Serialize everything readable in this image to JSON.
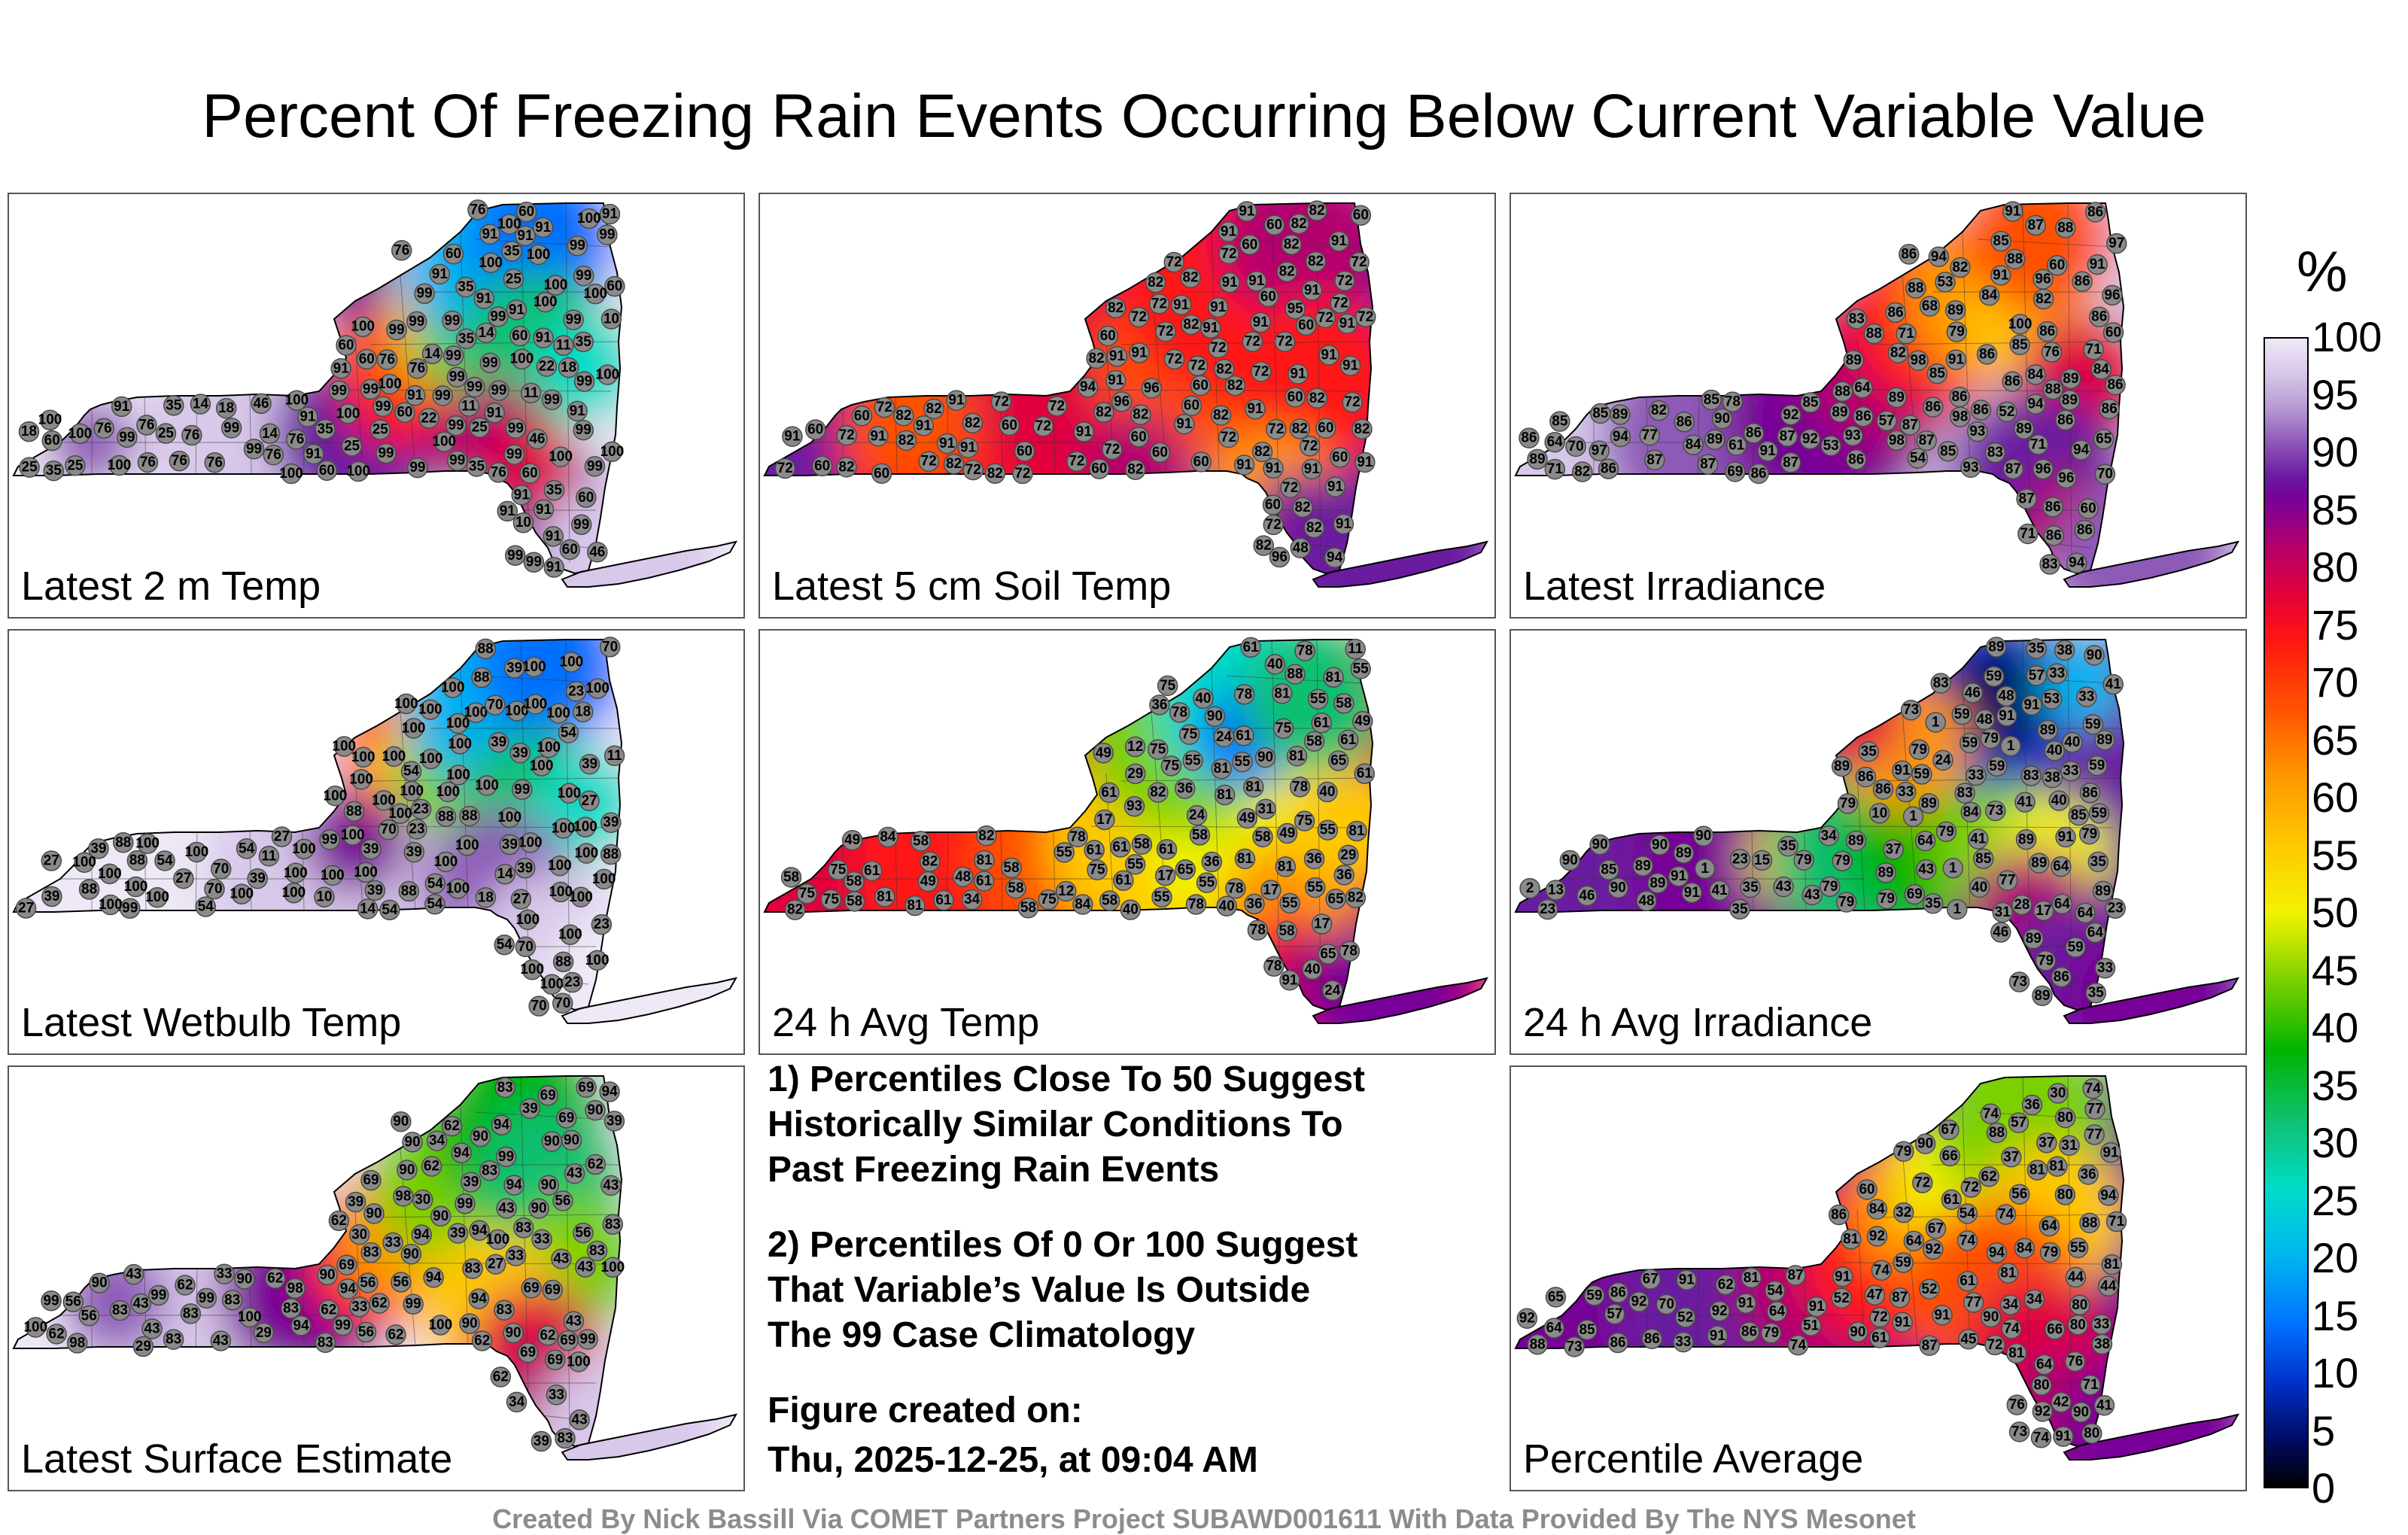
{
  "title": "Percent Of Freezing Rain Events Occurring Below Current Variable Value",
  "panels": [
    {
      "label": "Latest 2 m Temp",
      "theme": "temp2m"
    },
    {
      "label": "Latest 5 cm Soil Temp",
      "theme": "soil"
    },
    {
      "label": "Latest Irradiance",
      "theme": "irr"
    },
    {
      "label": "Latest Wetbulb Temp",
      "theme": "wetbulb"
    },
    {
      "label": "24 h Avg Temp",
      "theme": "avgtemp"
    },
    {
      "label": "24 h Avg Irradiance",
      "theme": "avgirr"
    },
    {
      "label": "Latest Surface Estimate",
      "theme": "surface"
    },
    {
      "label": "Percentile Average",
      "theme": "average"
    }
  ],
  "notes": {
    "note1": "1) Percentiles Close To 50 Suggest\nHistorically Similar Conditions To\nPast Freezing Rain Events",
    "note2": "2) Percentiles Of 0 Or 100 Suggest\nThat Variable’s Value Is Outside\nThe 99 Case Climatology",
    "created_label": "Figure created on:",
    "created_date": "Thu, 2025-12-25, at 09:04 AM"
  },
  "colorbar": {
    "unit": "%",
    "ticks": [
      "100",
      "95",
      "90",
      "85",
      "80",
      "75",
      "70",
      "65",
      "60",
      "55",
      "50",
      "45",
      "40",
      "35",
      "30",
      "25",
      "20",
      "15",
      "10",
      "5",
      "0"
    ]
  },
  "credit": "Created By Nick Bassill Via COMET Partners Project SUBAWD001611 With Data Provided By The NYS Mesonet",
  "station_values": {
    "temp2m": [
      "99",
      "99",
      "99",
      "100",
      "99",
      "99",
      "76",
      "91",
      "99",
      "100",
      "99",
      "99",
      "100",
      "91",
      "99",
      "100",
      "91",
      "99",
      "99",
      "100",
      "99",
      "91",
      "99",
      "99",
      "100",
      "99",
      "100",
      "99",
      "99",
      "99",
      "91",
      "99",
      "91",
      "99",
      "60",
      "60",
      "91",
      "99",
      "91",
      "76",
      "91",
      "60",
      "60",
      "100",
      "76",
      "99",
      "99",
      "91",
      "60",
      "76",
      "91",
      "99",
      "99",
      "91",
      "76",
      "35",
      "99",
      "76",
      "99",
      "91",
      "99",
      "100",
      "60",
      "35",
      "76",
      "99",
      "25",
      "91",
      "99",
      "35",
      "76",
      "91",
      "99",
      "91",
      "46",
      "35",
      "46",
      "25",
      "60",
      "35",
      "14",
      "11",
      "14",
      "35",
      "25",
      "25",
      "60",
      "91",
      "25",
      "10",
      "25",
      "11",
      "22",
      "14",
      "18",
      "11",
      "22",
      "18",
      "10",
      "14",
      "25",
      "76",
      "18",
      "60",
      "46",
      "76",
      "99",
      "91",
      "60",
      "35",
      "76",
      "99",
      "91",
      "35",
      "60",
      "76",
      "99",
      "91",
      "100",
      "100",
      "100",
      "100",
      "100",
      "100",
      "100",
      "100",
      "100",
      "100",
      "100",
      "100",
      "76",
      "60",
      "35"
    ],
    "soil": [
      "82",
      "91",
      "72",
      "82",
      "91",
      "72",
      "82",
      "91",
      "82",
      "60",
      "72",
      "94",
      "82",
      "91",
      "72",
      "82",
      "60",
      "72",
      "91",
      "82",
      "72",
      "91",
      "82",
      "60",
      "72",
      "82",
      "91",
      "72",
      "82",
      "91",
      "60",
      "72",
      "82",
      "91",
      "72",
      "60",
      "91",
      "72",
      "82",
      "91",
      "82",
      "72",
      "91",
      "60",
      "82",
      "72",
      "91",
      "82",
      "72",
      "60",
      "91",
      "82",
      "72",
      "91",
      "60",
      "72",
      "82",
      "91",
      "72",
      "60",
      "91",
      "82",
      "72",
      "91",
      "72",
      "82",
      "60",
      "91",
      "72",
      "60",
      "82",
      "96",
      "91",
      "72",
      "82",
      "60",
      "72",
      "91",
      "82",
      "91",
      "72",
      "60",
      "82",
      "72",
      "91",
      "60",
      "72",
      "82",
      "91",
      "72",
      "60",
      "82",
      "91",
      "96",
      "82",
      "72",
      "91",
      "60",
      "72",
      "48",
      "82",
      "60",
      "91",
      "72",
      "60",
      "96",
      "91",
      "82",
      "60",
      "72",
      "91",
      "91",
      "72",
      "60",
      "82",
      "91",
      "60",
      "72",
      "94",
      "95",
      "91",
      "72",
      "82",
      "60"
    ],
    "irr": [
      "94",
      "97",
      "98",
      "100",
      "96",
      "93",
      "97",
      "98",
      "89",
      "98",
      "96",
      "86",
      "87",
      "89",
      "92",
      "94",
      "96",
      "88",
      "86",
      "87",
      "86",
      "91",
      "89",
      "93",
      "94",
      "89",
      "86",
      "90",
      "94",
      "87",
      "88",
      "86",
      "91",
      "89",
      "89",
      "94",
      "87",
      "86",
      "85",
      "96",
      "91",
      "88",
      "89",
      "86",
      "86",
      "87",
      "83",
      "89",
      "86",
      "85",
      "82",
      "86",
      "84",
      "85",
      "86",
      "84",
      "82",
      "86",
      "88",
      "86",
      "91",
      "87",
      "84",
      "86",
      "86",
      "85",
      "71",
      "86",
      "53",
      "87",
      "60",
      "65",
      "70",
      "76",
      "78",
      "77",
      "71",
      "79",
      "82",
      "70",
      "83",
      "71",
      "68",
      "64",
      "57",
      "69",
      "53",
      "52",
      "60",
      "54",
      "84",
      "86",
      "82",
      "85",
      "86",
      "71",
      "91",
      "64",
      "61",
      "60",
      "86",
      "88",
      "85",
      "86",
      "82",
      "83",
      "86",
      "87",
      "86",
      "92",
      "87",
      "85",
      "86",
      "86",
      "85",
      "88",
      "71",
      "93",
      "89",
      "89"
    ],
    "wetbulb": [
      "100",
      "100",
      "100",
      "100",
      "100",
      "100",
      "100",
      "100",
      "100",
      "100",
      "100",
      "100",
      "100",
      "100",
      "100",
      "100",
      "100",
      "100",
      "100",
      "100",
      "88",
      "100",
      "100",
      "100",
      "100",
      "100",
      "100",
      "100",
      "100",
      "100",
      "100",
      "100",
      "100",
      "100",
      "100",
      "100",
      "70",
      "70",
      "54",
      "54",
      "100",
      "100",
      "100",
      "100",
      "88",
      "39",
      "39",
      "100",
      "100",
      "100",
      "88",
      "88",
      "54",
      "39",
      "54",
      "39",
      "27",
      "39",
      "39",
      "27",
      "23",
      "27",
      "39",
      "39",
      "14",
      "14",
      "11",
      "10",
      "23",
      "23",
      "27",
      "39",
      "70",
      "70",
      "100",
      "54",
      "88",
      "88",
      "88",
      "100",
      "100",
      "88",
      "88",
      "100",
      "100",
      "100",
      "100",
      "99",
      "99",
      "100",
      "100",
      "88",
      "70",
      "54",
      "39",
      "39",
      "23",
      "18",
      "11",
      "18",
      "27",
      "54",
      "54",
      "70",
      "99",
      "88",
      "23",
      "27",
      "70",
      "70",
      "39",
      "39",
      "54",
      "100",
      "100",
      "100",
      "100",
      "100",
      "100",
      "100",
      "100"
    ],
    "avgtemp": [
      "81",
      "84",
      "82",
      "81",
      "78",
      "81",
      "82",
      "78",
      "75",
      "81",
      "78",
      "82",
      "81",
      "75",
      "78",
      "81",
      "75",
      "82",
      "81",
      "78",
      "81",
      "78",
      "75",
      "81",
      "78",
      "75",
      "61",
      "65",
      "61",
      "75",
      "61",
      "58",
      "61",
      "55",
      "61",
      "58",
      "55",
      "61",
      "55",
      "58",
      "49",
      "55",
      "58",
      "49",
      "55",
      "61",
      "58",
      "49",
      "55",
      "58",
      "65",
      "49",
      "55",
      "61",
      "58",
      "55",
      "49",
      "58",
      "61",
      "55",
      "58",
      "49",
      "40",
      "55",
      "61",
      "58",
      "61",
      "40",
      "55",
      "58",
      "75",
      "75",
      "65",
      "78",
      "81",
      "61",
      "75",
      "78",
      "82",
      "75",
      "81",
      "90",
      "93",
      "90",
      "88",
      "84",
      "91",
      "65",
      "36",
      "36",
      "40",
      "40",
      "36",
      "24",
      "17",
      "17",
      "12",
      "11",
      "17",
      "31",
      "40",
      "24",
      "29",
      "29",
      "36",
      "34",
      "40",
      "48",
      "58",
      "36",
      "58",
      "58",
      "36",
      "12",
      "17",
      "24",
      "81",
      "75",
      "78",
      "61"
    ],
    "avgirr": [
      "89",
      "89",
      "90",
      "89",
      "89",
      "90",
      "89",
      "90",
      "89",
      "90",
      "90",
      "89",
      "89",
      "90",
      "89",
      "79",
      "89",
      "77",
      "79",
      "46",
      "79",
      "79",
      "79",
      "43",
      "46",
      "35",
      "35",
      "48",
      "40",
      "46",
      "35",
      "40",
      "35",
      "37",
      "24",
      "35",
      "33",
      "40",
      "33",
      "23",
      "35",
      "33",
      "23",
      "35",
      "59",
      "35",
      "59",
      "64",
      "59",
      "48",
      "41",
      "59",
      "79",
      "41",
      "59",
      "64",
      "86",
      "83",
      "85",
      "89",
      "79",
      "86",
      "91",
      "83",
      "83",
      "89",
      "91",
      "89",
      "91",
      "91",
      "85",
      "59",
      "79",
      "79",
      "69",
      "73",
      "79",
      "64",
      "59",
      "34",
      "2",
      "1",
      "1",
      "1",
      "1",
      "31",
      "1",
      "1",
      "13",
      "10",
      "17",
      "28",
      "43",
      "41",
      "33",
      "43",
      "53",
      "15",
      "89",
      "79",
      "91",
      "85",
      "91",
      "84",
      "86",
      "73",
      "73",
      "38",
      "57",
      "64",
      "59",
      "41",
      "33",
      "38",
      "40",
      "33",
      "23",
      "48",
      "64",
      "59",
      "86",
      "89"
    ],
    "surface": [
      "98",
      "100",
      "94",
      "90",
      "94",
      "98",
      "94",
      "90",
      "100",
      "99",
      "94",
      "90",
      "94",
      "98",
      "99",
      "94",
      "90",
      "83",
      "99",
      "94",
      "90",
      "83",
      "94",
      "99",
      "90",
      "83",
      "94",
      "99",
      "90",
      "83",
      "94",
      "90",
      "62",
      "43",
      "83",
      "90",
      "62",
      "43",
      "69",
      "83",
      "90",
      "62",
      "43",
      "69",
      "83",
      "90",
      "62",
      "56",
      "43",
      "83",
      "62",
      "56",
      "43",
      "39",
      "62",
      "69",
      "90",
      "83",
      "43",
      "39",
      "56",
      "62",
      "39",
      "43",
      "56",
      "69",
      "83",
      "90",
      "43",
      "62",
      "69",
      "83",
      "90",
      "99",
      "33",
      "33",
      "29",
      "34",
      "33",
      "30",
      "33",
      "39",
      "27",
      "39",
      "43",
      "56",
      "69",
      "62",
      "62",
      "39",
      "33",
      "30",
      "34",
      "29",
      "33",
      "62",
      "62",
      "56",
      "43",
      "43",
      "69",
      "90",
      "83",
      "99",
      "100",
      "100",
      "100",
      "100",
      "99",
      "83",
      "83",
      "69",
      "69",
      "83",
      "56",
      "90",
      "90",
      "69",
      "62"
    ],
    "average": [
      "92",
      "94",
      "88",
      "91",
      "92",
      "87",
      "91",
      "90",
      "90",
      "90",
      "80",
      "91",
      "88",
      "80",
      "90",
      "91",
      "92",
      "86",
      "91",
      "80",
      "86",
      "87",
      "80",
      "81",
      "91",
      "92",
      "86",
      "87",
      "85",
      "81",
      "94",
      "91",
      "74",
      "77",
      "81",
      "92",
      "74",
      "77",
      "81",
      "91",
      "74",
      "67",
      "73",
      "92",
      "81",
      "86",
      "74",
      "67",
      "73",
      "81",
      "74",
      "76",
      "67",
      "66",
      "72",
      "74",
      "76",
      "77",
      "71",
      "66",
      "72",
      "80",
      "60",
      "64",
      "56",
      "74",
      "61",
      "79",
      "72",
      "61",
      "59",
      "52",
      "65",
      "64",
      "47",
      "36",
      "31",
      "32",
      "36",
      "38",
      "34",
      "45",
      "44",
      "44",
      "33",
      "37",
      "41",
      "62",
      "34",
      "37",
      "42",
      "62",
      "33",
      "30",
      "61",
      "51",
      "57",
      "57",
      "54",
      "52",
      "55",
      "52",
      "64",
      "71",
      "70",
      "79",
      "84",
      "86",
      "88",
      "91",
      "84",
      "81",
      "72",
      "74",
      "59",
      "54",
      "64",
      "80",
      "79",
      "64"
    ]
  }
}
